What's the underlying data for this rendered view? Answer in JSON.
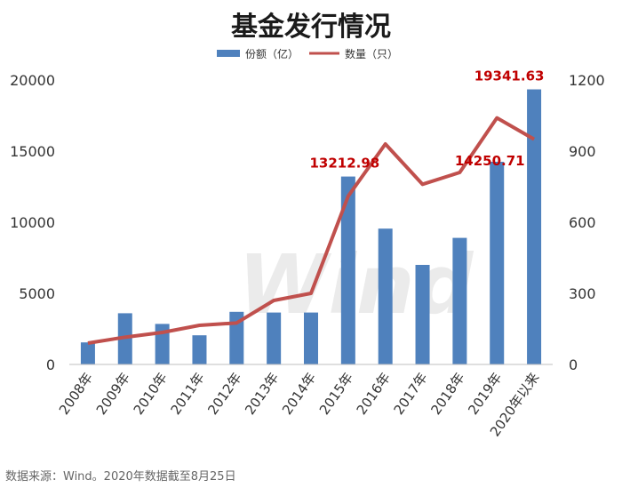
{
  "chart_data": {
    "type": "bar",
    "title": "基金发行情况",
    "categories": [
      "2008年",
      "2009年",
      "2010年",
      "2011年",
      "2012年",
      "2013年",
      "2014年",
      "2015年",
      "2016年",
      "2017年",
      "2018年",
      "2019年",
      "2020年以来"
    ],
    "series": [
      {
        "name": "份额（亿）",
        "type": "bar",
        "axis": "left",
        "color": "#4f81bd",
        "values": [
          1550,
          3600,
          2850,
          2050,
          3700,
          3650,
          3650,
          13212.98,
          9550,
          7000,
          8900,
          14250.71,
          19341.63
        ]
      },
      {
        "name": "数量（只）",
        "type": "line",
        "axis": "right",
        "color": "#c0504d",
        "values": [
          90,
          115,
          135,
          165,
          175,
          270,
          300,
          710,
          930,
          760,
          810,
          1040,
          950
        ]
      }
    ],
    "data_labels": [
      {
        "category": "2015年",
        "text": "13212.98"
      },
      {
        "category": "2019年",
        "text": "14250.71"
      },
      {
        "category": "2020年以来",
        "text": "19341.63"
      }
    ],
    "y_left": {
      "min": 0,
      "max": 20000,
      "ticks": [
        "0",
        "5000",
        "10000",
        "15000",
        "20000"
      ]
    },
    "y_right": {
      "min": 0,
      "max": 1200,
      "ticks": [
        "0",
        "300",
        "600",
        "900",
        "1200"
      ]
    },
    "legend_position": "top-center",
    "grid": false,
    "watermark": "Wind",
    "footer": "数据来源：Wind。2020年数据截至8月25日"
  }
}
